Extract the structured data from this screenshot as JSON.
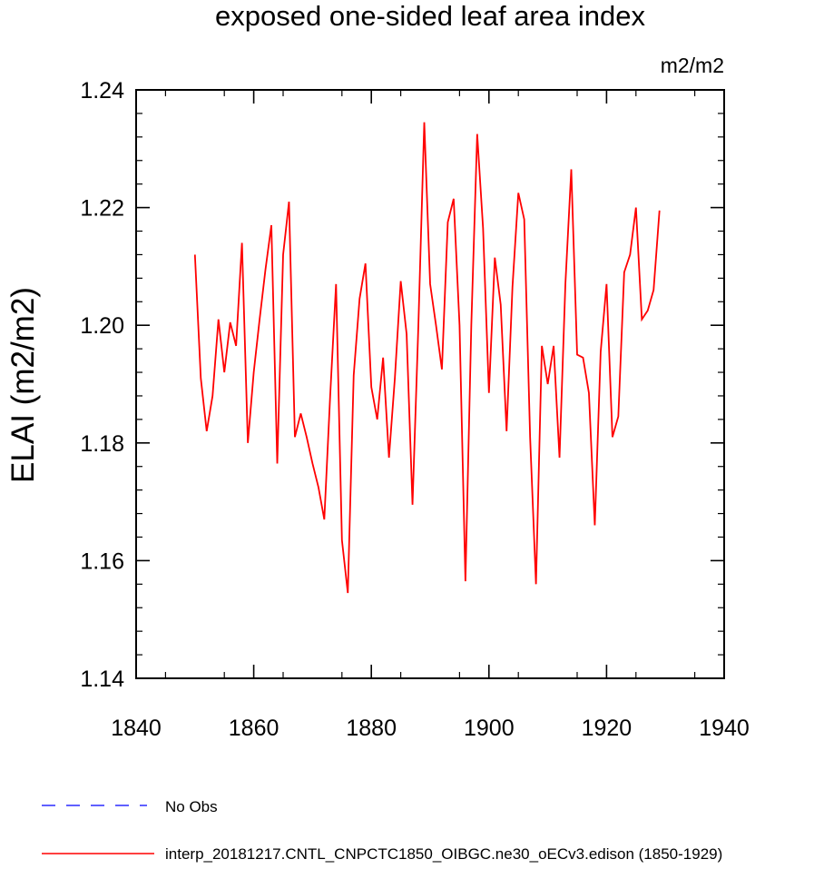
{
  "chart_data": {
    "type": "line",
    "title": "exposed one-sided leaf area index",
    "units_label": "m2/m2",
    "ylabel": "ELAI  (m2/m2)",
    "xlabel": "",
    "xlim": [
      1840,
      1940
    ],
    "ylim": [
      1.14,
      1.24
    ],
    "x_ticks": [
      1840,
      1860,
      1880,
      1900,
      1920,
      1940
    ],
    "x_tick_labels": [
      "1840",
      "1860",
      "1880",
      "1900",
      "1920",
      "1940"
    ],
    "y_ticks": [
      1.14,
      1.16,
      1.18,
      1.2,
      1.22,
      1.24
    ],
    "y_tick_labels": [
      "1.14",
      "1.16",
      "1.18",
      "1.20",
      "1.22",
      "1.24"
    ],
    "series": [
      {
        "name": "interp_20181217.CNTL_CNPCTC1850_OIBGC.ne30_oECv3.edison (1850-1929)",
        "color": "#ff0000",
        "style": "solid",
        "x": [
          1850,
          1851,
          1852,
          1853,
          1854,
          1855,
          1856,
          1857,
          1858,
          1859,
          1860,
          1861,
          1862,
          1863,
          1864,
          1865,
          1866,
          1867,
          1868,
          1869,
          1870,
          1871,
          1872,
          1873,
          1874,
          1875,
          1876,
          1877,
          1878,
          1879,
          1880,
          1881,
          1882,
          1883,
          1884,
          1885,
          1886,
          1887,
          1888,
          1889,
          1890,
          1891,
          1892,
          1893,
          1894,
          1895,
          1896,
          1897,
          1898,
          1899,
          1900,
          1901,
          1902,
          1903,
          1904,
          1905,
          1906,
          1907,
          1908,
          1909,
          1910,
          1911,
          1912,
          1913,
          1914,
          1915,
          1916,
          1917,
          1918,
          1919,
          1920,
          1921,
          1922,
          1923,
          1924,
          1925,
          1926,
          1927,
          1928,
          1929
        ],
        "values": [
          1.212,
          1.191,
          1.182,
          1.188,
          1.201,
          1.192,
          1.2005,
          1.1965,
          1.214,
          1.18,
          1.192,
          1.201,
          1.2095,
          1.217,
          1.1765,
          1.212,
          1.221,
          1.181,
          1.185,
          1.181,
          1.1765,
          1.1725,
          1.167,
          1.188,
          1.207,
          1.1635,
          1.1545,
          1.1915,
          1.2045,
          1.2105,
          1.1895,
          1.184,
          1.1945,
          1.1775,
          1.191,
          1.2075,
          1.1985,
          1.1695,
          1.2,
          1.2345,
          1.207,
          1.2,
          1.1925,
          1.2175,
          1.2215,
          1.2,
          1.1565,
          1.2,
          1.2325,
          1.2165,
          1.1885,
          1.2115,
          1.2035,
          1.182,
          1.2065,
          1.2225,
          1.218,
          1.181,
          1.156,
          1.1965,
          1.19,
          1.1965,
          1.1775,
          1.207,
          1.2265,
          1.195,
          1.1945,
          1.1885,
          1.166,
          1.1955,
          1.207,
          1.181,
          1.1845,
          1.209,
          1.212,
          1.22,
          1.201,
          1.2025,
          1.206,
          1.2195
        ]
      }
    ],
    "legend": [
      {
        "label": "No Obs",
        "color": "#0000ff",
        "style": "dashed"
      },
      {
        "label": "interp_20181217.CNTL_CNPCTC1850_OIBGC.ne30_oECv3.edison (1850-1929)",
        "color": "#ff0000",
        "style": "solid"
      }
    ],
    "legend_position": "bottom"
  }
}
